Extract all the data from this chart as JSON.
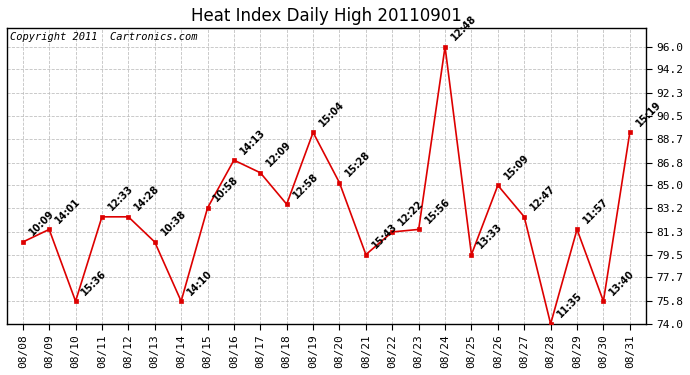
{
  "title": "Heat Index Daily High 20110901",
  "copyright": "Copyright 2011  Cartronics.com",
  "dates": [
    "08/08",
    "08/09",
    "08/10",
    "08/11",
    "08/12",
    "08/13",
    "08/14",
    "08/15",
    "08/16",
    "08/17",
    "08/18",
    "08/19",
    "08/20",
    "08/21",
    "08/22",
    "08/23",
    "08/24",
    "08/25",
    "08/26",
    "08/27",
    "08/28",
    "08/29",
    "08/30",
    "08/31"
  ],
  "values": [
    80.5,
    81.5,
    75.8,
    82.5,
    82.5,
    80.5,
    75.8,
    83.2,
    87.0,
    86.0,
    83.5,
    89.2,
    85.2,
    79.5,
    81.3,
    81.5,
    96.0,
    79.5,
    85.0,
    82.5,
    74.0,
    81.5,
    75.8,
    89.2
  ],
  "labels": [
    "10:09",
    "14:01",
    "15:36",
    "12:33",
    "14:28",
    "10:38",
    "14:10",
    "10:58",
    "14:13",
    "12:09",
    "12:58",
    "15:04",
    "15:28",
    "15:43",
    "12:22",
    "15:56",
    "12:48",
    "13:33",
    "15:09",
    "12:47",
    "11:35",
    "11:57",
    "13:40",
    "15:19"
  ],
  "line_color": "#dd0000",
  "marker_color": "#dd0000",
  "bg_color": "#ffffff",
  "grid_color": "#bbbbbb",
  "ylim": [
    74.0,
    97.5
  ],
  "yticks": [
    74.0,
    75.8,
    77.7,
    79.5,
    81.3,
    83.2,
    85.0,
    86.8,
    88.7,
    90.5,
    92.3,
    94.2,
    96.0
  ],
  "title_fontsize": 12,
  "label_fontsize": 7,
  "copyright_fontsize": 7.5,
  "tick_fontsize": 8,
  "figwidth": 6.9,
  "figheight": 3.75
}
